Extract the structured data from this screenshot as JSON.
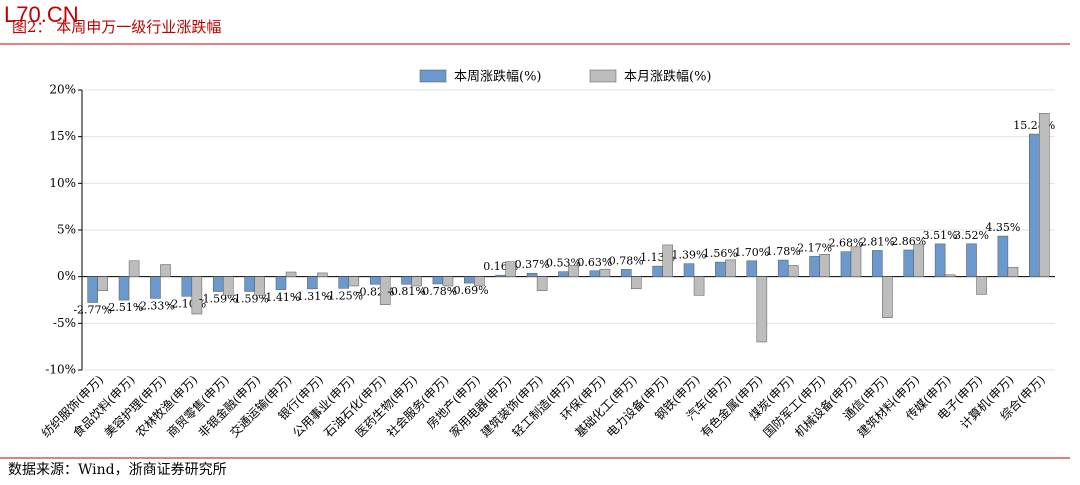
{
  "chart_data": {
    "type": "bar",
    "watermark": "L70.CN",
    "title": "图2：  本周申万一级行业涨跌幅",
    "source": "数据来源：Wind，浙商证券研究所",
    "categories": [
      "纺织服饰(申万)",
      "食品饮料(申万)",
      "美容护理(申万)",
      "农林牧渔(申万)",
      "商贸零售(申万)",
      "非银金融(申万)",
      "交通运输(申万)",
      "银行(申万)",
      "公用事业(申万)",
      "石油石化(申万)",
      "医药生物(申万)",
      "社会服务(申万)",
      "房地产(申万)",
      "家用电器(申万)",
      "建筑装饰(申万)",
      "轻工制造(申万)",
      "环保(申万)",
      "基础化工(申万)",
      "电力设备(申万)",
      "钢铁(申万)",
      "汽车(申万)",
      "有色金属(申万)",
      "煤炭(申万)",
      "国防军工(申万)",
      "机械设备(申万)",
      "通信(申万)",
      "建筑材料(申万)",
      "传媒(申万)",
      "电子(申万)",
      "计算机(申万)",
      "综合(申万)"
    ],
    "series": [
      {
        "name": "本周涨跌幅(%)",
        "color": "#6b98cd",
        "values": [
          -2.77,
          -2.51,
          -2.33,
          -2.1,
          -1.59,
          -1.59,
          -1.41,
          -1.31,
          -1.25,
          -0.82,
          -0.81,
          -0.78,
          -0.69,
          0.16,
          0.37,
          0.53,
          0.63,
          0.78,
          1.13,
          1.39,
          1.56,
          1.7,
          1.78,
          2.17,
          2.68,
          2.81,
          2.86,
          3.51,
          3.52,
          4.35,
          15.28
        ],
        "value_labels": [
          "-2.77%",
          "-2.51%",
          "-2.33%",
          "-2.10%",
          "-1.59%",
          "-1.59%",
          "-1.41%",
          "-1.31%",
          "-1.25%",
          "-0.82%",
          "-0.81%",
          "-0.78%",
          "-0.69%",
          "0.16%",
          "0.37%",
          "0.53%",
          "0.63%",
          "0.78%",
          "1.13%",
          "1.39%",
          "1.56%",
          "1.70%",
          "1.78%",
          "2.17%",
          "2.68%",
          "2.81%",
          "2.86%",
          "3.51%",
          "3.52%",
          "4.35%",
          "15.28%"
        ]
      },
      {
        "name": "本月涨跌幅(%)",
        "color": "#bdbdbd",
        "values": [
          -1.5,
          1.7,
          1.3,
          -4.0,
          -2.0,
          -2.0,
          0.5,
          0.4,
          -1.0,
          -3.0,
          -1.0,
          -1.0,
          -1.0,
          1.6,
          -1.5,
          1.2,
          0.8,
          -1.3,
          3.4,
          -2.0,
          1.8,
          -7.0,
          1.2,
          2.4,
          3.2,
          -4.4,
          3.5,
          0.2,
          -1.9,
          1.0,
          17.5
        ]
      }
    ],
    "ylim": [
      -10,
      20
    ],
    "yticks": [
      {
        "value": -10,
        "label": "-10%"
      },
      {
        "value": -5,
        "label": "-5%"
      },
      {
        "value": 0,
        "label": "0%"
      },
      {
        "value": 5,
        "label": "5%"
      },
      {
        "value": 10,
        "label": "10%"
      },
      {
        "value": 15,
        "label": "15%"
      },
      {
        "value": 20,
        "label": "20%"
      }
    ],
    "grid": true
  }
}
